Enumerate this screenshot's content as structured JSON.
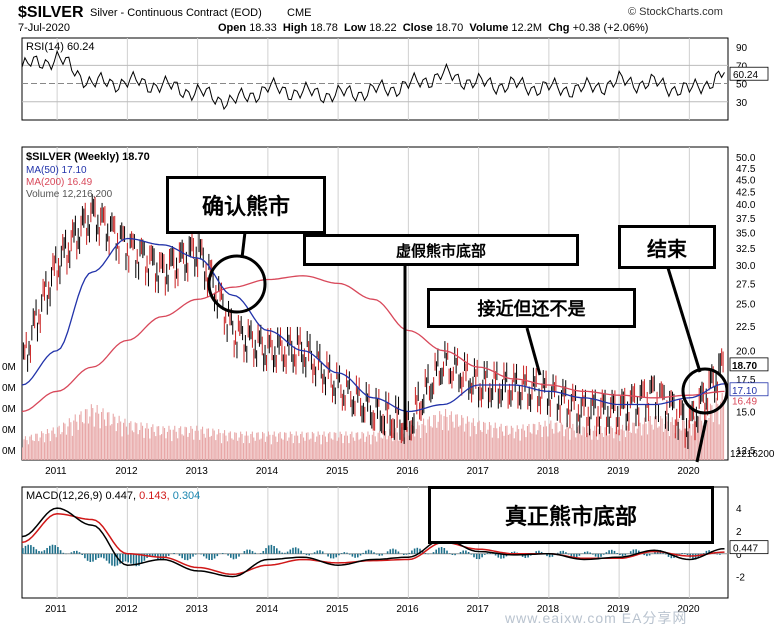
{
  "header": {
    "symbol": "$SILVER",
    "name": "Silver - Continuous Contract (EOD)",
    "exchange": "CME",
    "source": "© StockCharts.com",
    "date": "7-Jul-2020",
    "open_label": "Open",
    "open": "18.33",
    "high_label": "High",
    "high": "18.78",
    "low_label": "Low",
    "low": "18.22",
    "close_label": "Close",
    "close": "18.70",
    "volume_label": "Volume",
    "volume": "12.2M",
    "chg_label": "Chg",
    "chg": "+0.38 (+2.06%)"
  },
  "annotations": {
    "confirm_bear": "确认熊市",
    "false_bottom": "虚假熊市底部",
    "close_not_yet": "接近但还不是",
    "end": "结束",
    "true_bottom": "真正熊市底部"
  },
  "watermark": "www.eaixw.com EA分享网",
  "colors": {
    "price_up": "#000000",
    "price_down": "#c81e1e",
    "ma50": "#2233aa",
    "ma200": "#d8485a",
    "volume": "#e8a8a8",
    "rsi": "#000000",
    "macd": "#000000",
    "macd_signal": "#d01818",
    "macd_hist": "#1d6f8a"
  },
  "chart_data": [
    {
      "type": "line",
      "panel": "RSI",
      "legend": "RSI(14) 60.24",
      "series": [
        {
          "name": "RSI(14)",
          "last": 60.24
        }
      ],
      "yticks": [
        30,
        50,
        70,
        90
      ],
      "ylim": [
        10,
        100
      ],
      "reference_lines": [
        30,
        50,
        70
      ],
      "last_value_label": "60.24",
      "x": [
        "2010.5",
        "2011",
        "2011.5",
        "2012",
        "2012.5",
        "2013",
        "2013.5",
        "2014",
        "2014.5",
        "2015",
        "2015.5",
        "2016",
        "2016.5",
        "2017",
        "2017.5",
        "2018",
        "2018.5",
        "2019",
        "2019.5",
        "2020",
        "2020.5"
      ],
      "values": [
        68,
        78,
        50,
        52,
        48,
        40,
        30,
        45,
        40,
        38,
        42,
        48,
        60,
        50,
        48,
        45,
        44,
        52,
        50,
        42,
        60
      ]
    },
    {
      "type": "line",
      "panel": "Price",
      "legend": {
        "title": "$SILVER (Weekly) 18.70",
        "ma50": "MA(50) 17.10",
        "ma200": "MA(200) 16.49",
        "volume": "Volume 12,216,200"
      },
      "yticks": [
        "12.5",
        "15.0",
        "17.5",
        "20.0",
        "22.5",
        "25.0",
        "27.5",
        "30.0",
        "32.5",
        "35.0",
        "37.5",
        "40.0",
        "42.5",
        "45.0",
        "47.5",
        "50.0"
      ],
      "ylim": [
        12.5,
        50
      ],
      "scale": "log",
      "x": [
        "2010.5",
        "2011",
        "2011.5",
        "2012",
        "2012.5",
        "2013",
        "2013.5",
        "2014",
        "2014.5",
        "2015",
        "2015.5",
        "2016",
        "2016.5",
        "2017",
        "2017.5",
        "2018",
        "2018.5",
        "2019",
        "2019.5",
        "2020",
        "2020.5"
      ],
      "series": [
        {
          "name": "$SILVER",
          "values": [
            18.5,
            30,
            38,
            33,
            29,
            32,
            22,
            20,
            20,
            17,
            15,
            14,
            19,
            17,
            16.8,
            16.5,
            15,
            15,
            16.5,
            14,
            18.7
          ]
        },
        {
          "name": "MA(50)",
          "values": [
            17,
            20,
            29,
            34,
            33,
            31,
            26,
            22,
            20,
            18,
            16,
            15,
            15.5,
            17,
            17,
            16.5,
            16,
            15.5,
            15.5,
            16,
            17.1
          ]
        },
        {
          "name": "MA(200)",
          "values": [
            15,
            16.5,
            18.5,
            21,
            23.5,
            25.5,
            27,
            28,
            28.5,
            27.5,
            25.5,
            22,
            20,
            18.5,
            17.5,
            17,
            16.5,
            16.2,
            16,
            16.2,
            16.49
          ]
        }
      ],
      "volume": {
        "name": "Volume",
        "values": [
          4,
          6,
          10,
          7,
          6,
          6,
          5,
          5,
          5,
          5,
          5,
          6,
          9,
          7,
          6,
          7,
          6,
          6,
          8,
          7,
          12.2
        ]
      },
      "right_labels": {
        "close": "18.70",
        "ma50": "17.10",
        "ma200": "16.49",
        "volume": "12216200"
      },
      "left_volume_labels": [
        "0M",
        "0M",
        "0M",
        "0M",
        "0M"
      ]
    },
    {
      "type": "line",
      "panel": "MACD",
      "legend_prefix": "MACD(12,26,9)",
      "macd": "0.447",
      "signal": "0.143",
      "histogram": "0.304",
      "yticks": [
        4,
        2,
        0,
        -2
      ],
      "ylim": [
        -3,
        5.5
      ],
      "x": [
        "2010.5",
        "2011",
        "2011.5",
        "2012",
        "2012.5",
        "2013",
        "2013.5",
        "2014",
        "2014.5",
        "2015",
        "2015.5",
        "2016",
        "2016.5",
        "2017",
        "2017.5",
        "2018",
        "2018.5",
        "2019",
        "2019.5",
        "2020",
        "2020.5"
      ],
      "series": [
        {
          "name": "MACD",
          "values": [
            1.5,
            4,
            2.5,
            -1,
            -0.5,
            -1.5,
            -2,
            -0.5,
            -0.3,
            -1,
            -0.5,
            -0.3,
            1.3,
            0.2,
            -0.1,
            0,
            -0.5,
            -0.3,
            0.3,
            -0.5,
            0.447
          ]
        },
        {
          "name": "Signal",
          "values": [
            1,
            3.5,
            3,
            0,
            -0.3,
            -1.2,
            -1.8,
            -1,
            -0.5,
            -0.8,
            -0.6,
            -0.5,
            1,
            0.4,
            0,
            0,
            -0.4,
            -0.4,
            0.2,
            -0.2,
            0.143
          ]
        }
      ],
      "right_label": "0.447"
    }
  ],
  "x_axis": {
    "ticks": [
      "2011",
      "2012",
      "2013",
      "2014",
      "2015",
      "2016",
      "2017",
      "2018",
      "2019",
      "2020"
    ]
  }
}
